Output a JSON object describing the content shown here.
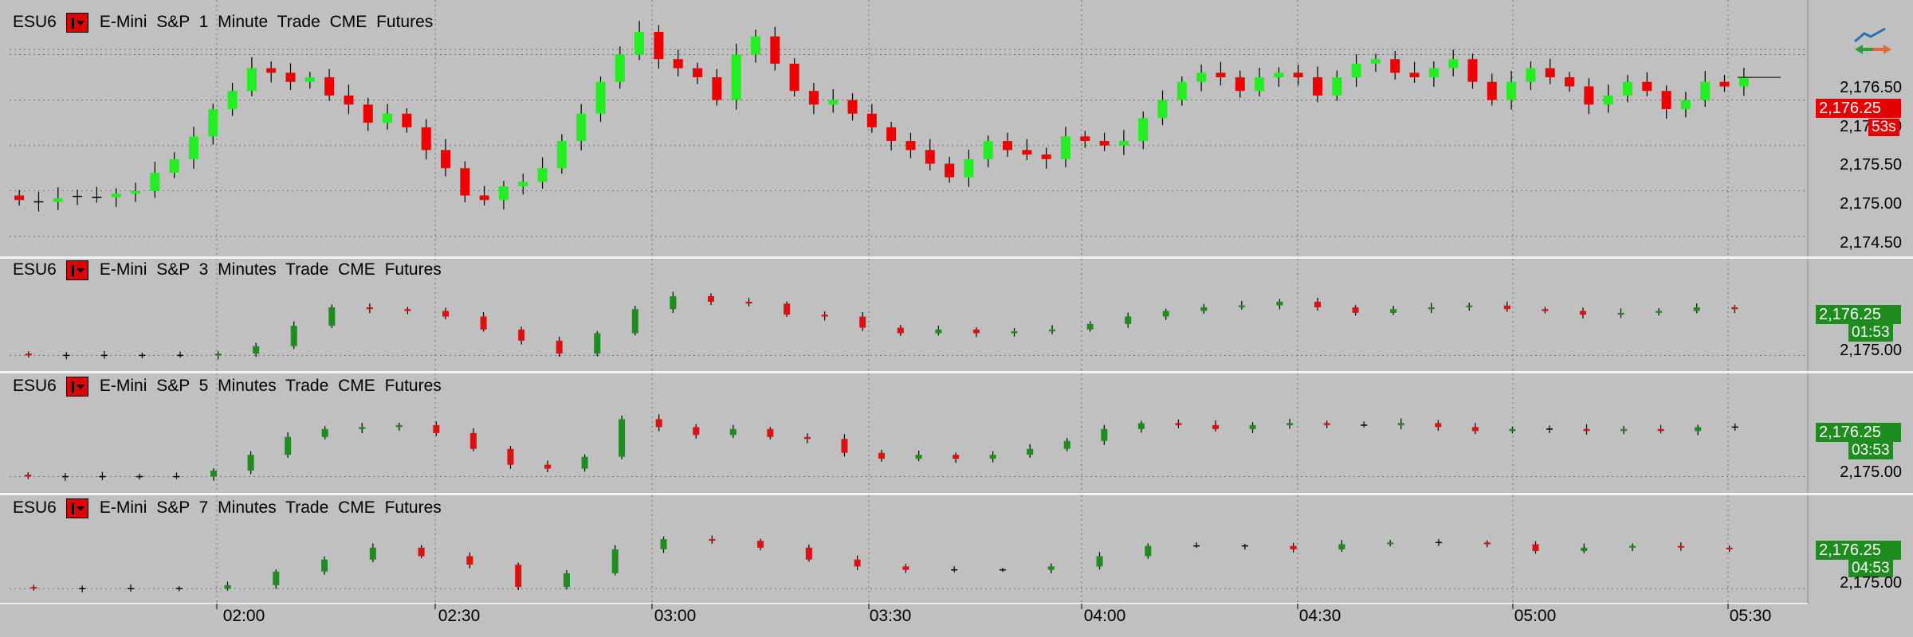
{
  "time_axis": [
    "02:00",
    "02:30",
    "03:00",
    "03:30",
    "04:00",
    "04:30",
    "05:00",
    "05:30"
  ],
  "colors": {
    "up_bright": "#22ee22",
    "down_bright": "#ee0000",
    "up_dark": "#1e8c1e",
    "down_dark": "#dd1111",
    "doji": "#000000",
    "background": "#c0c0c0"
  },
  "panels": [
    {
      "symbol": "ESU6",
      "description": "E-Mini S&P  1 Minute  Trade  CME  Futures",
      "price_labels": [
        "2,176.50",
        "2,176.00",
        "2,175.50",
        "2,175.00",
        "2,174.50"
      ],
      "last_price": "2,176.25",
      "timer": "53s",
      "last_color": "down"
    },
    {
      "symbol": "ESU6",
      "description": "E-Mini S&P  3 Minutes  Trade  CME  Futures",
      "price_labels": [
        "2,175.00"
      ],
      "last_price": "2,176.25",
      "timer": "01:53",
      "last_color": "up"
    },
    {
      "symbol": "ESU6",
      "description": "E-Mini S&P  5 Minutes  Trade  CME  Futures",
      "price_labels": [
        "2,175.00"
      ],
      "last_price": "2,176.25",
      "timer": "03:53",
      "last_color": "up"
    },
    {
      "symbol": "ESU6",
      "description": "E-Mini S&P  7 Minutes  Trade  CME  Futures",
      "price_labels": [
        "2,175.00"
      ],
      "last_price": "2,176.25",
      "timer": "04:53",
      "last_color": "up"
    }
  ],
  "chart_data": [
    {
      "type": "candlestick",
      "title": "E-Mini S&P 1 Minute",
      "ylim": [
        2174.35,
        2176.75
      ],
      "close_series": [
        2174.9,
        2174.88,
        2174.92,
        2174.94,
        2174.93,
        2174.97,
        2175.0,
        2175.2,
        2175.35,
        2175.6,
        2175.9,
        2176.1,
        2176.35,
        2176.3,
        2176.2,
        2176.25,
        2176.05,
        2175.95,
        2175.75,
        2175.85,
        2175.7,
        2175.45,
        2175.25,
        2174.95,
        2174.9,
        2175.05,
        2175.1,
        2175.25,
        2175.55,
        2175.85,
        2176.2,
        2176.5,
        2176.75,
        2176.45,
        2176.35,
        2176.25,
        2176.0,
        2176.5,
        2176.7,
        2176.4,
        2176.1,
        2175.95,
        2176.0,
        2175.85,
        2175.7,
        2175.55,
        2175.45,
        2175.3,
        2175.15,
        2175.35,
        2175.55,
        2175.45,
        2175.4,
        2175.35,
        2175.6,
        2175.55,
        2175.5,
        2175.55,
        2175.8,
        2176.0,
        2176.2,
        2176.3,
        2176.25,
        2176.1,
        2176.25,
        2176.3,
        2176.25,
        2176.05,
        2176.25,
        2176.4,
        2176.45,
        2176.3,
        2176.25,
        2176.35,
        2176.45,
        2176.2,
        2176.0,
        2176.2,
        2176.35,
        2176.25,
        2176.15,
        2175.95,
        2176.05,
        2176.2,
        2176.1,
        2175.9,
        2176.0,
        2176.2,
        2176.15,
        2176.25
      ]
    },
    {
      "type": "candlestick",
      "title": "E-Mini S&P 3 Minutes",
      "ylim": [
        2174.75,
        2176.75
      ],
      "close_series": [
        2175.0,
        2175.0,
        2175.0,
        2175.0,
        2175.0,
        2175.05,
        2175.25,
        2175.8,
        2176.3,
        2176.25,
        2176.2,
        2176.05,
        2175.7,
        2175.4,
        2175.05,
        2175.6,
        2176.25,
        2176.6,
        2176.45,
        2176.4,
        2176.1,
        2176.05,
        2175.75,
        2175.6,
        2175.7,
        2175.6,
        2175.65,
        2175.7,
        2175.85,
        2176.05,
        2176.2,
        2176.3,
        2176.35,
        2176.45,
        2176.3,
        2176.15,
        2176.25,
        2176.3,
        2176.35,
        2176.25,
        2176.2,
        2176.1,
        2176.15,
        2176.2,
        2176.3,
        2176.25
      ]
    },
    {
      "type": "candlestick",
      "title": "E-Mini S&P 5 Minutes",
      "ylim": [
        2174.75,
        2176.8
      ],
      "close_series": [
        2175.0,
        2175.0,
        2175.0,
        2175.0,
        2175.0,
        2175.15,
        2175.55,
        2176.0,
        2176.2,
        2176.25,
        2176.3,
        2176.1,
        2175.7,
        2175.3,
        2175.2,
        2175.5,
        2176.45,
        2176.25,
        2176.05,
        2176.2,
        2176.0,
        2175.95,
        2175.6,
        2175.45,
        2175.55,
        2175.45,
        2175.55,
        2175.7,
        2175.9,
        2176.2,
        2176.35,
        2176.3,
        2176.2,
        2176.3,
        2176.35,
        2176.3,
        2176.3,
        2176.35,
        2176.25,
        2176.15,
        2176.2,
        2176.2,
        2176.15,
        2176.2,
        2176.15,
        2176.25,
        2176.25
      ]
    },
    {
      "type": "candlestick",
      "title": "E-Mini S&P 7 Minutes",
      "ylim": [
        2174.75,
        2176.8
      ],
      "close_series": [
        2175.0,
        2175.0,
        2175.0,
        2175.0,
        2175.1,
        2175.5,
        2175.85,
        2176.2,
        2175.95,
        2175.7,
        2175.05,
        2175.45,
        2176.15,
        2176.45,
        2176.4,
        2176.2,
        2175.85,
        2175.65,
        2175.55,
        2175.55,
        2175.55,
        2175.65,
        2175.95,
        2176.25,
        2176.25,
        2176.25,
        2176.15,
        2176.3,
        2176.35,
        2176.35,
        2176.3,
        2176.1,
        2176.2,
        2176.25,
        2176.2,
        2176.15
      ]
    }
  ]
}
